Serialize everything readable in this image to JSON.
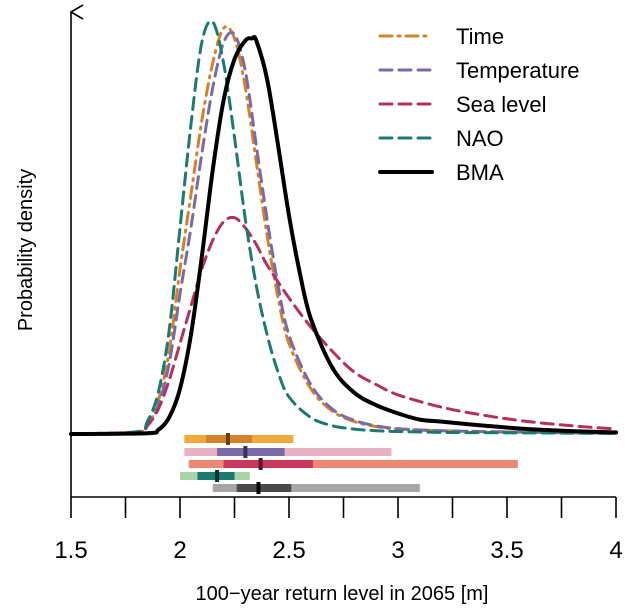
{
  "chart_data": {
    "type": "line",
    "xlabel": "100−year return level in 2065 [m]",
    "ylabel": "Probability density",
    "xlim": [
      1.5,
      4.0
    ],
    "ylim": [
      0,
      1.0
    ],
    "x_ticks": [
      "1.5",
      "2",
      "2.5",
      "3",
      "3.5",
      "4"
    ],
    "grid": false,
    "legend_position": "top-right",
    "series": [
      {
        "name": "Time",
        "color": "#d4822a",
        "dash": "dotdash",
        "x": [
          1.5,
          1.8,
          1.85,
          1.9,
          1.95,
          2.0,
          2.05,
          2.1,
          2.15,
          2.2,
          2.25,
          2.3,
          2.35,
          2.4,
          2.45,
          2.5,
          2.6,
          2.7,
          2.8,
          2.9,
          3.0,
          3.2,
          3.5,
          3.8,
          4.0
        ],
        "y": [
          0.0,
          0.005,
          0.02,
          0.08,
          0.2,
          0.4,
          0.58,
          0.76,
          0.9,
          0.985,
          0.96,
          0.84,
          0.66,
          0.48,
          0.33,
          0.22,
          0.11,
          0.055,
          0.03,
          0.018,
          0.012,
          0.008,
          0.005,
          0.003,
          0.002
        ]
      },
      {
        "name": "Temperature",
        "color": "#7b6aa8",
        "dash": "dashed",
        "x": [
          1.5,
          1.8,
          1.85,
          1.9,
          1.95,
          2.0,
          2.05,
          2.1,
          2.15,
          2.2,
          2.25,
          2.3,
          2.35,
          2.4,
          2.45,
          2.5,
          2.6,
          2.7,
          2.8,
          2.9,
          3.0,
          3.2,
          3.5,
          3.8,
          4.0
        ],
        "y": [
          0.0,
          0.005,
          0.02,
          0.07,
          0.17,
          0.34,
          0.5,
          0.68,
          0.84,
          0.95,
          0.97,
          0.88,
          0.7,
          0.52,
          0.36,
          0.24,
          0.12,
          0.06,
          0.033,
          0.02,
          0.013,
          0.008,
          0.005,
          0.003,
          0.002
        ]
      },
      {
        "name": "Sea level",
        "color": "#b5305e",
        "dash": "dashed",
        "x": [
          1.5,
          1.8,
          1.85,
          1.9,
          1.95,
          2.0,
          2.05,
          2.1,
          2.15,
          2.2,
          2.25,
          2.3,
          2.35,
          2.4,
          2.5,
          2.6,
          2.7,
          2.8,
          2.9,
          3.0,
          3.2,
          3.4,
          3.6,
          3.8,
          4.0
        ],
        "y": [
          0.0,
          0.005,
          0.02,
          0.06,
          0.13,
          0.22,
          0.31,
          0.4,
          0.47,
          0.515,
          0.525,
          0.5,
          0.46,
          0.41,
          0.33,
          0.26,
          0.2,
          0.15,
          0.12,
          0.095,
          0.065,
          0.045,
          0.03,
          0.02,
          0.012
        ]
      },
      {
        "name": "NAO",
        "color": "#1d7a70",
        "dash": "dashed",
        "x": [
          1.5,
          1.8,
          1.85,
          1.9,
          1.95,
          2.0,
          2.05,
          2.1,
          2.15,
          2.2,
          2.25,
          2.3,
          2.35,
          2.4,
          2.45,
          2.5,
          2.6,
          2.7,
          2.8,
          2.9,
          3.0,
          3.2,
          3.5,
          3.8,
          4.0
        ],
        "y": [
          0.0,
          0.005,
          0.03,
          0.1,
          0.25,
          0.5,
          0.75,
          0.95,
          1.0,
          0.9,
          0.72,
          0.52,
          0.36,
          0.24,
          0.15,
          0.09,
          0.04,
          0.02,
          0.012,
          0.008,
          0.006,
          0.004,
          0.003,
          0.002,
          0.001
        ]
      },
      {
        "name": "BMA",
        "color": "#000000",
        "dash": "solid",
        "x": [
          1.5,
          1.85,
          1.9,
          1.95,
          2.0,
          2.05,
          2.1,
          2.15,
          2.2,
          2.25,
          2.3,
          2.33,
          2.35,
          2.4,
          2.45,
          2.5,
          2.55,
          2.6,
          2.7,
          2.8,
          2.9,
          3.0,
          3.1,
          3.2,
          3.4,
          3.6,
          3.8,
          4.0
        ],
        "y": [
          0.0,
          0.002,
          0.01,
          0.04,
          0.11,
          0.24,
          0.43,
          0.64,
          0.81,
          0.91,
          0.955,
          0.96,
          0.955,
          0.86,
          0.7,
          0.53,
          0.39,
          0.28,
          0.16,
          0.1,
          0.07,
          0.05,
          0.035,
          0.03,
          0.02,
          0.012,
          0.007,
          0.004
        ]
      }
    ],
    "intervals": [
      {
        "name": "Time",
        "wide": [
          2.02,
          2.52
        ],
        "narrow": [
          2.12,
          2.33
        ],
        "median": 2.22,
        "colors": [
          "#f2a93a",
          "#d4822a",
          "#6b3e10"
        ]
      },
      {
        "name": "Temperature",
        "wide": [
          2.02,
          2.97
        ],
        "narrow": [
          2.17,
          2.48
        ],
        "median": 2.3,
        "colors": [
          "#e8b1c4",
          "#7b6aa8",
          "#3a2f5c"
        ]
      },
      {
        "name": "Sea level",
        "wide": [
          2.04,
          3.55
        ],
        "narrow": [
          2.2,
          2.61
        ],
        "median": 2.37,
        "colors": [
          "#ea8a74",
          "#c73a5e",
          "#5a0f24"
        ]
      },
      {
        "name": "NAO",
        "wide": [
          2.0,
          2.32
        ],
        "narrow": [
          2.08,
          2.25
        ],
        "median": 2.17,
        "colors": [
          "#a6d4a2",
          "#1d7a70",
          "#0b3330"
        ]
      },
      {
        "name": "BMA",
        "wide": [
          2.15,
          3.1
        ],
        "narrow": [
          2.26,
          2.51
        ],
        "median": 2.36,
        "colors": [
          "#a6a6a6",
          "#4a4a4a",
          "#000000"
        ]
      }
    ]
  }
}
